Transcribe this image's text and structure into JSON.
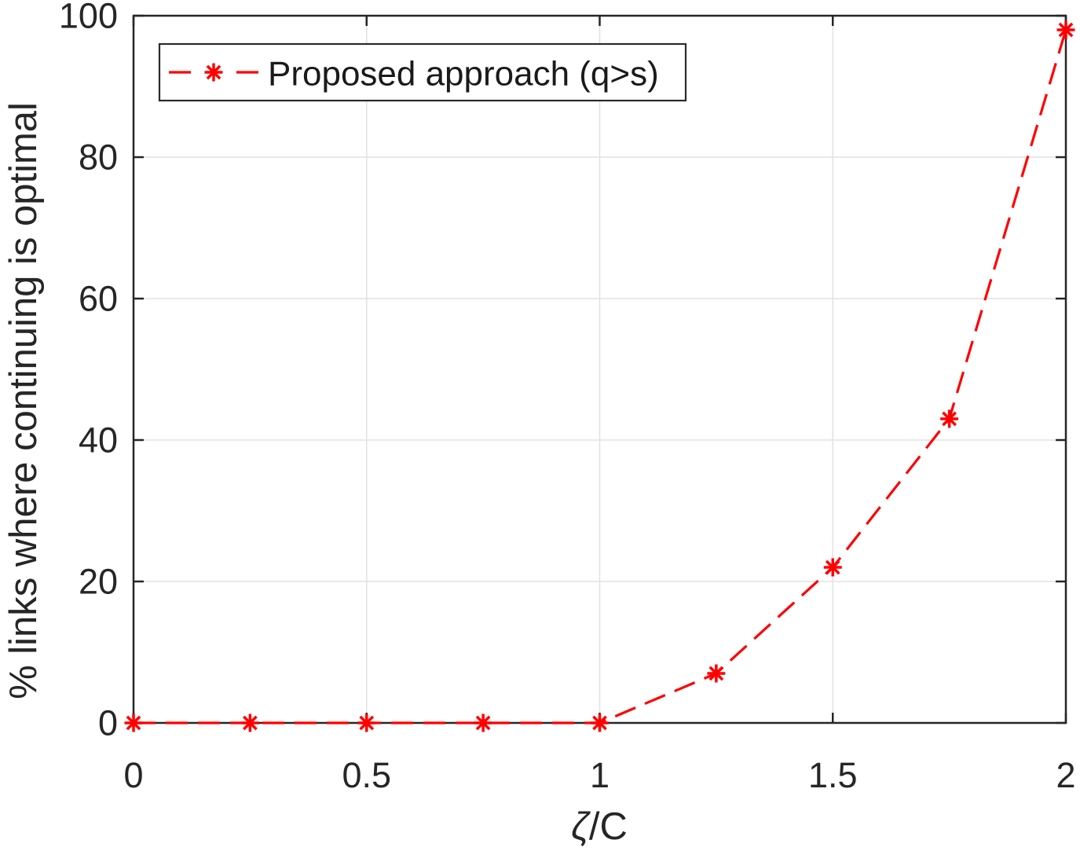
{
  "figure": {
    "background": "#ffffff"
  },
  "chart_data": {
    "type": "line",
    "title": "",
    "xlabel": "ζ/C",
    "xlabel_parts": {
      "symbol": "ζ",
      "rest": "/C"
    },
    "ylabel": "% links where continuing is optimal",
    "x": [
      0,
      0.25,
      0.5,
      0.75,
      1,
      1.25,
      1.5,
      1.75,
      2
    ],
    "series": [
      {
        "name": "Proposed approach (q>s)",
        "values": [
          0,
          0,
          0,
          0,
          0,
          7,
          22,
          43,
          98
        ],
        "color": "#ff0000",
        "line_style": "dashed",
        "marker": "asterisk"
      }
    ],
    "xlim": [
      0,
      2
    ],
    "ylim": [
      0,
      100
    ],
    "xtick_values": [
      0,
      0.5,
      1,
      1.5,
      2
    ],
    "xtick_labels": [
      "0",
      "0.5",
      "1",
      "1.5",
      "2"
    ],
    "ytick_values": [
      0,
      20,
      40,
      60,
      80,
      100
    ],
    "ytick_labels": [
      "0",
      "20",
      "40",
      "60",
      "80",
      "100"
    ],
    "grid": true,
    "legend": {
      "position": "top-left",
      "entries": [
        "Proposed approach (q>s)"
      ]
    },
    "colors": {
      "axis": "#262626",
      "tick_text": "#262626",
      "grid": "#e2e2e2",
      "series": "#ff0000",
      "legend_border": "#2b2b2b",
      "legend_background": "#ffffff",
      "legend_text": "#1a1a1a"
    }
  }
}
